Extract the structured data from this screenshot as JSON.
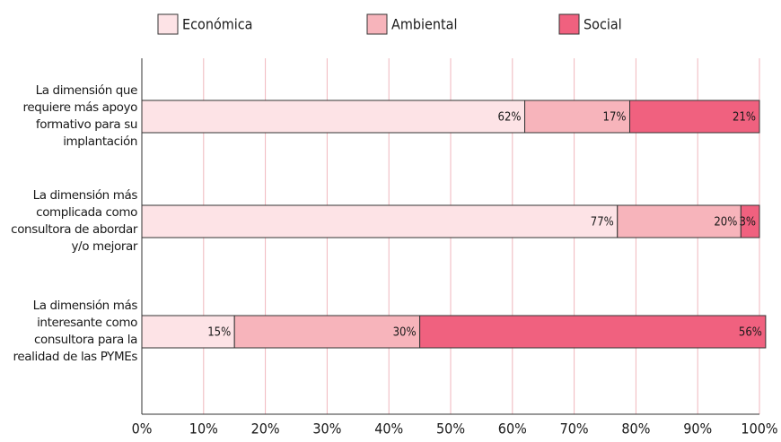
{
  "chart_data": {
    "type": "stacked_bar_horizontal",
    "categories": [
      "La dimensión que requiere más apoyo formativo para su implantación",
      "La dimensión más complicada como consultora de abordar y/o mejorar",
      "La dimensión más interesante como consultora para la realidad de las PYMEs"
    ],
    "series": [
      {
        "name": "Económica",
        "color": "#fde3e6",
        "values": [
          62,
          77,
          15
        ],
        "value_labels": [
          "62%",
          "77%",
          "15%"
        ]
      },
      {
        "name": "Ambiental",
        "color": "#f7b4bb",
        "values": [
          17,
          20,
          30
        ],
        "value_labels": [
          "17%",
          "20%",
          "30%"
        ]
      },
      {
        "name": "Social",
        "color": "#f0617f",
        "values": [
          21,
          3,
          56
        ],
        "value_labels": [
          "21%",
          "3%",
          "56%"
        ]
      }
    ],
    "xlim": [
      0,
      100
    ],
    "xticks": [
      {
        "value": 0,
        "label": "0%"
      },
      {
        "value": 10,
        "label": "10%"
      },
      {
        "value": 20,
        "label": "20%"
      },
      {
        "value": 30,
        "label": "30%"
      },
      {
        "value": 40,
        "label": "40%"
      },
      {
        "value": 50,
        "label": "50%"
      },
      {
        "value": 60,
        "label": "60%"
      },
      {
        "value": 70,
        "label": "70%"
      },
      {
        "value": 80,
        "label": "80%"
      },
      {
        "value": 90,
        "label": "90%"
      },
      {
        "value": 100,
        "label": "100%"
      }
    ],
    "grid": true,
    "legend": "top"
  }
}
